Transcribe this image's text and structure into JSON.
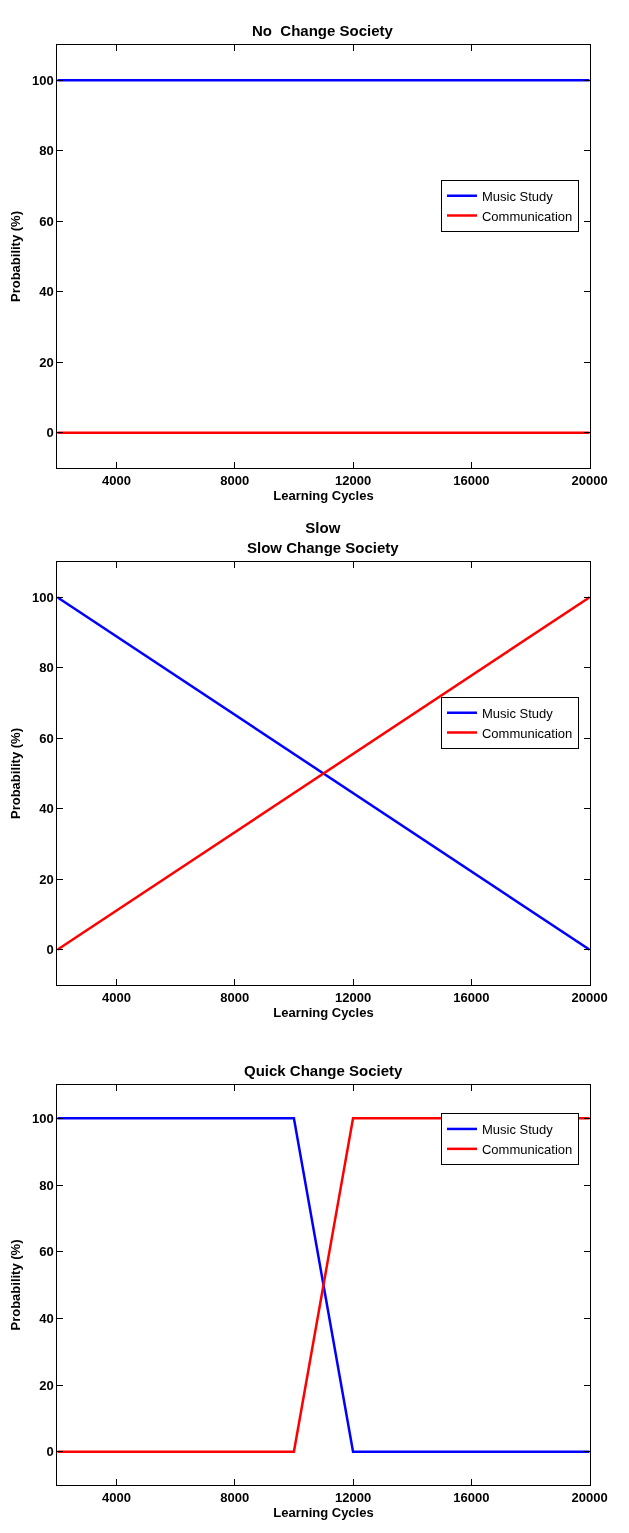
{
  "chart_data": [
    {
      "type": "line",
      "title": "No  Change Society",
      "xlabel": "Learning Cycles",
      "ylabel": "Probability (%)",
      "x": [
        2000,
        20000
      ],
      "xlim": [
        2000,
        20000
      ],
      "xticks": [
        4000,
        8000,
        12000,
        16000,
        20000
      ],
      "ylim": [
        -10,
        110
      ],
      "yticks": [
        0,
        20,
        40,
        60,
        80,
        100
      ],
      "legend": "right",
      "marker": "none",
      "line_style": "solid",
      "series": [
        {
          "name": "Music Study",
          "color": "#0000ff",
          "values": [
            100,
            100
          ]
        },
        {
          "name": "Communication",
          "color": "#ff0000",
          "values": [
            0,
            0
          ]
        }
      ]
    },
    {
      "type": "line",
      "title": "Slow\nSlow Change Society",
      "xlabel": "Learning Cycles",
      "ylabel": "Probability (%)",
      "x": [
        2000,
        20000
      ],
      "xlim": [
        2000,
        20000
      ],
      "xticks": [
        4000,
        8000,
        12000,
        16000,
        20000
      ],
      "ylim": [
        -10,
        110
      ],
      "yticks": [
        0,
        20,
        40,
        60,
        80,
        100
      ],
      "legend": "right",
      "marker": "none",
      "line_style": "solid",
      "series": [
        {
          "name": "Music Study",
          "color": "#0000ff",
          "values": [
            100,
            0
          ]
        },
        {
          "name": "Communication",
          "color": "#ff0000",
          "values": [
            0,
            100
          ]
        }
      ]
    },
    {
      "type": "line",
      "title": "Quick Change Society",
      "xlabel": "Learning Cycles",
      "ylabel": "Probability (%)",
      "x": [
        2000,
        10000,
        12000,
        20000
      ],
      "xlim": [
        2000,
        20000
      ],
      "xticks": [
        4000,
        8000,
        12000,
        16000,
        20000
      ],
      "ylim": [
        -10,
        110
      ],
      "yticks": [
        0,
        20,
        40,
        60,
        80,
        100
      ],
      "legend": "top right",
      "marker": "none",
      "line_style": "solid",
      "series": [
        {
          "name": "Music Study",
          "color": "#0000ff",
          "values": [
            100,
            100,
            0,
            0
          ]
        },
        {
          "name": "Communication",
          "color": "#ff0000",
          "values": [
            0,
            0,
            100,
            100
          ]
        }
      ]
    }
  ]
}
